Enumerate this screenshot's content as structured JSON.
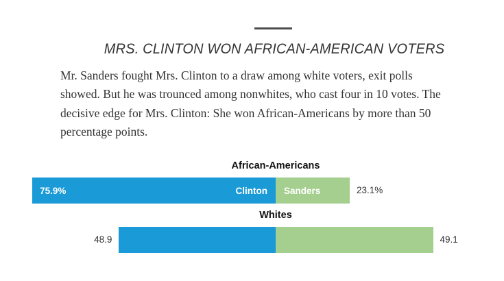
{
  "header": {
    "title": "MRS. CLINTON WON AFRICAN-AMERICAN VOTERS"
  },
  "paragraph": {
    "lines": [
      "Mr. Sanders fought Mrs. Clinton to a draw among white voters, exit polls",
      "showed. But he was trounced among nonwhites, who cast four in 10 votes. The",
      "decisive edge for Mrs. Clinton: She won African-Americans by more than 50",
      "percentage points."
    ]
  },
  "chart_data": {
    "type": "bar",
    "orientation": "horizontal",
    "stacked": true,
    "alignment": "bars aligned at the Clinton/Sanders boundary",
    "categories": [
      "African-Americans",
      "Whites"
    ],
    "series": [
      {
        "name": "Clinton",
        "color": "#1a9ad6",
        "values": [
          75.9,
          48.9
        ]
      },
      {
        "name": "Sanders",
        "color": "#a5cf8e",
        "values": [
          23.1,
          49.1
        ]
      }
    ],
    "value_labels": [
      {
        "clinton": "75.9%",
        "sanders": "23.1%"
      },
      {
        "clinton": "48.9",
        "sanders": "49.1"
      }
    ],
    "inside_segment_labels_row": 0,
    "legend_position": "inside-bar",
    "grid": false
  },
  "colors": {
    "clinton_blue": "#1a9ad6",
    "sanders_green": "#a5cf8e",
    "rule_gray": "#4d4d4d",
    "text_dark": "#333333"
  }
}
